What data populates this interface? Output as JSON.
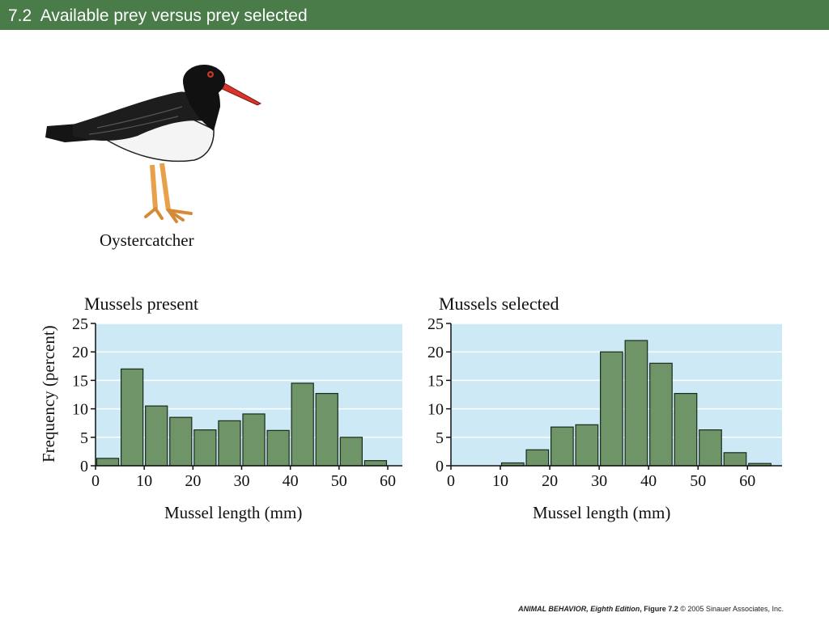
{
  "slide": {
    "title": "7.2  Available prey versus prey selected"
  },
  "illustration": {
    "caption": "Oystercatcher"
  },
  "chart_data": [
    {
      "type": "bar",
      "title": "Mussels present",
      "xlabel": "Mussel length (mm)",
      "ylabel": "Frequency (percent)",
      "xlim": [
        0,
        63
      ],
      "ylim": [
        0,
        25
      ],
      "x_ticks": [
        0,
        10,
        20,
        30,
        40,
        50,
        60
      ],
      "y_ticks": [
        0,
        5,
        10,
        15,
        20,
        25
      ],
      "grid": true,
      "bin_width": 5,
      "bins": [
        {
          "x": 0,
          "value": 1.3
        },
        {
          "x": 5,
          "value": 17
        },
        {
          "x": 10,
          "value": 10.5
        },
        {
          "x": 15,
          "value": 8.5
        },
        {
          "x": 20,
          "value": 6.3
        },
        {
          "x": 25,
          "value": 7.9
        },
        {
          "x": 30,
          "value": 9.1
        },
        {
          "x": 35,
          "value": 6.2
        },
        {
          "x": 40,
          "value": 14.5
        },
        {
          "x": 45,
          "value": 12.7
        },
        {
          "x": 50,
          "value": 5.0
        },
        {
          "x": 55,
          "value": 0.9
        }
      ]
    },
    {
      "type": "bar",
      "title": "Mussels selected",
      "xlabel": "Mussel length (mm)",
      "xlim": [
        0,
        67
      ],
      "ylim": [
        0,
        25
      ],
      "x_ticks": [
        0,
        10,
        20,
        30,
        40,
        50,
        60
      ],
      "y_ticks": [
        0,
        5,
        10,
        15,
        20,
        25
      ],
      "grid": true,
      "bin_width": 5,
      "bins": [
        {
          "x": 10,
          "value": 0.5
        },
        {
          "x": 15,
          "value": 2.8
        },
        {
          "x": 20,
          "value": 6.8
        },
        {
          "x": 25,
          "value": 7.2
        },
        {
          "x": 30,
          "value": 20
        },
        {
          "x": 35,
          "value": 22
        },
        {
          "x": 40,
          "value": 18
        },
        {
          "x": 45,
          "value": 12.7
        },
        {
          "x": 50,
          "value": 6.3
        },
        {
          "x": 55,
          "value": 2.3
        },
        {
          "x": 60,
          "value": 0.4
        }
      ]
    }
  ],
  "colors": {
    "plot_bg": "#cde9f6",
    "bar_fill": "#6f9468",
    "bar_stroke": "#1a2a1a",
    "grid": "#ffffff",
    "title_bar": "#4a7c4a"
  },
  "footer": {
    "book": "ANIMAL BEHAVIOR, Eighth Edition",
    "figure": ", Figure 7.2",
    "copyright": "  © 2005 Sinauer Associates, Inc."
  }
}
